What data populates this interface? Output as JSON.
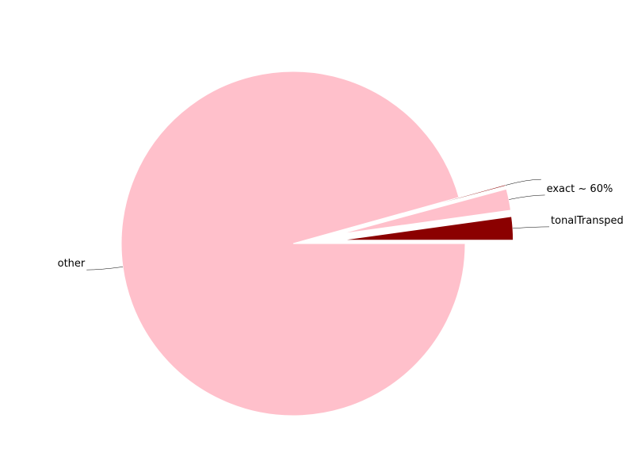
{
  "chart_data": {
    "type": "pie",
    "title": "",
    "slices": [
      {
        "label": "tonalTransped",
        "value": 0.022,
        "color": "#8b0000",
        "explode": 0.28
      },
      {
        "label": "exact ~ 60%",
        "value": 0.02,
        "color": "#ffc0cb",
        "explode": 0.28
      },
      {
        "label": "",
        "value": 0.0012,
        "color": "#8b0000",
        "explode": 0.28
      },
      {
        "label": "other",
        "value": 0.9568,
        "color": "#ffc0cb",
        "explode": 0.0
      }
    ],
    "start_angle_deg": 0,
    "direction": "counterclockwise",
    "legend": "none"
  }
}
